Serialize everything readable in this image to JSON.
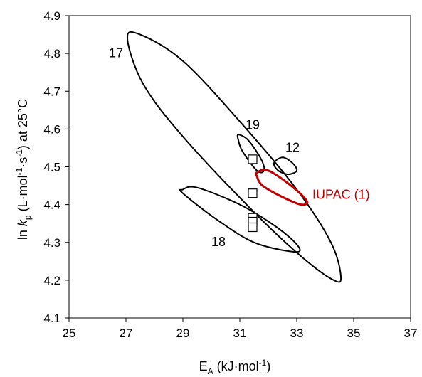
{
  "chart_data": {
    "type": "scatter",
    "xlabel": {
      "base": "E",
      "sub": "A",
      "unit_pre": " (kJ·mol",
      "sup": "-1",
      "unit_post": ")"
    },
    "ylabel": {
      "pre": "ln ",
      "k": "k",
      "sub": "p",
      "mid1": " (L·mol",
      "sup1": "-1",
      "mid2": "·s",
      "sup2": "-1",
      "post": ") at 25°C"
    },
    "xlim": [
      25,
      37
    ],
    "ylim": [
      4.1,
      4.9
    ],
    "xticks": [
      "25",
      "27",
      "29",
      "31",
      "33",
      "35",
      "37"
    ],
    "yticks": [
      "4.1",
      "4.2",
      "4.3",
      "4.4",
      "4.5",
      "4.6",
      "4.7",
      "4.8",
      "4.9"
    ],
    "grid": false,
    "points": {
      "marker": "open-square",
      "x": [
        31.45,
        31.45,
        31.45,
        31.45,
        31.45
      ],
      "y": [
        4.52,
        4.43,
        4.365,
        4.355,
        4.34
      ]
    },
    "regions": [
      {
        "label": "17",
        "color": "#000000",
        "center": [
          30.8,
          4.525
        ],
        "path": [
          [
            27.05,
            4.84
          ],
          [
            27.5,
            4.85
          ],
          [
            29.0,
            4.78
          ],
          [
            31.0,
            4.62
          ],
          [
            33.0,
            4.44
          ],
          [
            34.2,
            4.3
          ],
          [
            34.55,
            4.21
          ],
          [
            34.3,
            4.2
          ],
          [
            33.2,
            4.26
          ],
          [
            31.5,
            4.38
          ],
          [
            29.0,
            4.58
          ],
          [
            27.6,
            4.72
          ],
          [
            27.05,
            4.84
          ]
        ],
        "label_pos": [
          26.4,
          4.79
        ]
      },
      {
        "label": "18",
        "color": "#000000",
        "center": [
          31.0,
          4.36
        ],
        "path": [
          [
            29.0,
            4.44
          ],
          [
            29.5,
            4.445
          ],
          [
            31.0,
            4.4
          ],
          [
            32.3,
            4.34
          ],
          [
            33.05,
            4.29
          ],
          [
            32.9,
            4.275
          ],
          [
            31.5,
            4.3
          ],
          [
            30.2,
            4.36
          ],
          [
            29.0,
            4.43
          ],
          [
            29.0,
            4.44
          ]
        ],
        "label_pos": [
          30.0,
          4.29
        ]
      },
      {
        "label": "19",
        "color": "#000000",
        "center": [
          31.4,
          4.55
        ],
        "path": [
          [
            30.95,
            4.585
          ],
          [
            31.3,
            4.57
          ],
          [
            31.75,
            4.52
          ],
          [
            31.85,
            4.49
          ],
          [
            31.6,
            4.49
          ],
          [
            31.1,
            4.54
          ],
          [
            30.95,
            4.57
          ],
          [
            30.95,
            4.585
          ]
        ],
        "label_pos": [
          31.2,
          4.6
        ]
      },
      {
        "label": "12",
        "color": "#000000",
        "center": [
          32.6,
          4.505
        ],
        "path": [
          [
            32.2,
            4.51
          ],
          [
            32.5,
            4.525
          ],
          [
            32.85,
            4.51
          ],
          [
            33.0,
            4.49
          ],
          [
            32.7,
            4.48
          ],
          [
            32.35,
            4.49
          ],
          [
            32.2,
            4.51
          ]
        ],
        "label_pos": [
          32.6,
          4.54
        ]
      },
      {
        "label": "IUPAC (1)",
        "color": "#c00000",
        "center": [
          32.4,
          4.44
        ],
        "path": [
          [
            31.6,
            4.485
          ],
          [
            32.0,
            4.49
          ],
          [
            32.8,
            4.45
          ],
          [
            33.35,
            4.41
          ],
          [
            33.15,
            4.4
          ],
          [
            32.5,
            4.42
          ],
          [
            31.8,
            4.45
          ],
          [
            31.6,
            4.475
          ],
          [
            31.6,
            4.485
          ]
        ],
        "label_pos": [
          33.55,
          4.415
        ]
      }
    ]
  }
}
